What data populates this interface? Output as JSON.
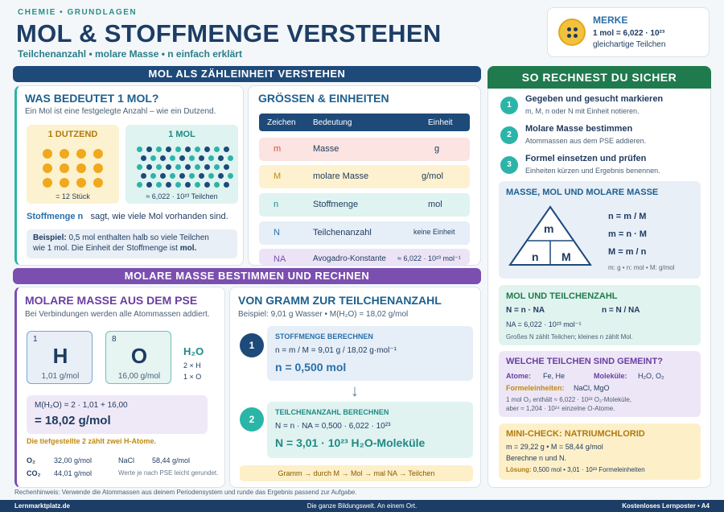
{
  "header": {
    "eyebrow": "CHEMIE • GRUNDLAGEN",
    "title": "MOL & STOFFMENGE VERSTEHEN",
    "subtitle": "Teilchenanzahl • molare Masse • n einfach erklärt"
  },
  "merke": {
    "title": "MERKE",
    "line1": "1 mol = 6,022 · 10²³",
    "line2": "gleichartige Teilchen"
  },
  "s1": {
    "band": "MOL ALS ZÄHLEINHEIT VERSTEHEN",
    "what": {
      "title": "WAS BEDEUTET 1 MOL?",
      "intro": "Ein Mol ist eine festgelegte Anzahl – wie ein Dutzend.",
      "dozen_title": "1 DUTZEND",
      "dozen_caption": "= 12 Stück",
      "mol_title": "1 MOL",
      "mol_caption": "≈ 6,022 · 10²³ Teilchen",
      "stoff_term": "Stoffmenge n",
      "stoff_text": "sagt, wie viele Mol vorhanden sind.",
      "example_label": "Beispiel:",
      "example_text": "0,5 mol enthalten halb so viele Teilchen",
      "example_text2": "wie 1 mol. Die Einheit der Stoffmenge ist",
      "example_unit": "mol."
    },
    "units": {
      "title": "GRÖSSEN & EINHEITEN",
      "headers": [
        "Zeichen",
        "Bedeutung",
        "Einheit"
      ],
      "rows": [
        {
          "sym": "m",
          "meaning": "Masse",
          "unit": "g"
        },
        {
          "sym": "M",
          "meaning": "molare Masse",
          "unit": "g/mol"
        },
        {
          "sym": "n",
          "meaning": "Stoffmenge",
          "unit": "mol"
        },
        {
          "sym": "N",
          "meaning": "Teilchenanzahl",
          "unit": "keine Einheit"
        },
        {
          "sym": "NA",
          "meaning": "Avogadro-Konstante",
          "unit": "≈ 6,022 · 10²³ mol⁻¹"
        }
      ]
    }
  },
  "s2": {
    "band": "MOLARE MASSE BESTIMMEN UND RECHNEN",
    "molar": {
      "title": "MOLARE MASSE AUS DEM PSE",
      "intro": "Bei Verbindungen werden alle Atommassen addiert.",
      "h": {
        "num": "1",
        "sym": "H",
        "mass": "1,01 g/mol"
      },
      "o": {
        "num": "8",
        "sym": "O",
        "mass": "16,00 g/mol"
      },
      "formula": "H₂O",
      "h_count": "2 × H",
      "o_count": "1 × O",
      "calc": "M(H₂O) = 2 · 1,01 + 16,00",
      "result": "= 18,02 g/mol",
      "note": "Die tiefgestellte 2 zählt zwei H-Atome.",
      "extra": [
        {
          "f": "O₂",
          "v": "32,00 g/mol"
        },
        {
          "f": "CO₂",
          "v": "44,01 g/mol"
        }
      ],
      "nacl": "NaCl",
      "nacl_v": "58,44 g/mol",
      "pse_note": "Werte je nach PSE leicht gerundet."
    },
    "gram": {
      "title": "VON GRAMM ZUR TEILCHENANZAHL",
      "example": "Beispiel: 9,01 g Wasser • M(H₂O) = 18,02 g/mol",
      "step1_num": "1",
      "step1_title": "STOFFMENGE BERECHNEN",
      "step1_calc": "n = m / M = 9,01 g / 18,02 g·mol⁻¹",
      "step1_result": "n = 0,500 mol",
      "step2_num": "2",
      "step2_title": "TEILCHENANZAHL BERECHNEN",
      "step2_calc": "N = n · NA = 0,500 · 6,022 · 10²³",
      "step2_result": "N = 3,01 · 10²³ H₂O-Moleküle",
      "flow": "Gramm → durch M → Mol → mal NA → Teilchen"
    }
  },
  "right": {
    "band": "SO RECHNEST DU SICHER",
    "steps": [
      {
        "num": "1",
        "title": "Gegeben und gesucht markieren",
        "text": "m, M, n oder N mit Einheit notieren."
      },
      {
        "num": "2",
        "title": "Molare Masse bestimmen",
        "text": "Atommassen aus dem PSE addieren."
      },
      {
        "num": "3",
        "title": "Formel einsetzen und prüfen",
        "text": "Einheiten kürzen und Ergebnis benennen."
      }
    ],
    "triangle": {
      "title": "MASSE, MOL UND MOLARE MASSE",
      "top": "m",
      "left": "n",
      "right": "M",
      "f1": "n = m / M",
      "f2": "m = n · M",
      "f3": "M = m / n",
      "units": "m: g • n: mol • M: g/mol"
    },
    "particles": {
      "title": "MOL UND TEILCHENZAHL",
      "f1": "N = n · NA",
      "f2": "n = N / NA",
      "na": "NA = 6,022 · 10²³ mol⁻¹",
      "note": "Großes N zählt Teilchen; kleines n zählt Mol."
    },
    "which": {
      "title": "WELCHE TEILCHEN SIND GEMEINT?",
      "atoms_label": "Atome:",
      "atoms": "Fe, He",
      "mol_label": "Moleküle:",
      "mol": "H₂O, O₂",
      "formula_label": "Formeleinheiten:",
      "formula": "NaCl, MgO",
      "note1": "1 mol O₂ enthält ≈ 6,022 · 10²³ O₂-Moleküle,",
      "note2": "aber ≈ 1,204 · 10²⁴ einzelne O-Atome."
    },
    "check": {
      "title": "MINI-CHECK: NATRIUMCHLORID",
      "given": "m = 29,22 g • M = 58,44 g/mol",
      "task": "Berechne n und N.",
      "sol_label": "Lösung:",
      "sol": "0,500 mol • 3,01 · 10²³ Formeleinheiten"
    }
  },
  "hint": "Rechenhinweis: Verwende die Atommassen aus deinem Periodensystem und runde das Ergebnis passend zur Aufgabe.",
  "footer": {
    "left": "Lernmarktplatz.de",
    "center": "Die ganze Bildungswelt. An einem Ort.",
    "right": "Kostenloses Lernposter • A4"
  },
  "colors": {
    "navy": "#1e4a7a",
    "purple": "#7b4fb0",
    "green": "#1f7a4d",
    "teal": "#2bb5a8"
  }
}
